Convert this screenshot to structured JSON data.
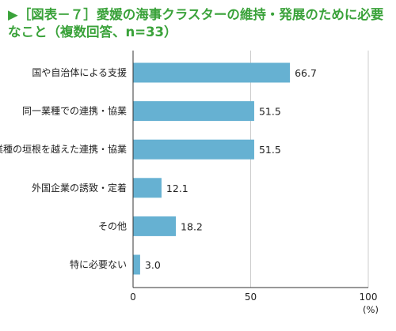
{
  "title": "▶［図表－７］愛媛の海事クラスターの維持・発展のために必要なこと（複数回答、n=33）",
  "chart_data": {
    "type": "bar",
    "orientation": "horizontal",
    "categories": [
      "国や自治体による支援",
      "同一業種での連携・協業",
      "業種の垣根を越えた連携・協業",
      "外国企業の誘致・定着",
      "その他",
      "特に必要ない"
    ],
    "values": [
      66.7,
      51.5,
      51.5,
      12.1,
      18.2,
      3.0
    ],
    "value_labels": [
      "66.7",
      "51.5",
      "51.5",
      "12.1",
      "18.2",
      "3.0"
    ],
    "xlim": [
      0,
      100
    ],
    "xticks": [
      "0",
      "50",
      "100"
    ],
    "xunit": "(%)",
    "bar_color": "#66b1d2",
    "grid": true,
    "grid_color": "#cccccc",
    "title_color": "#3aa23a"
  }
}
